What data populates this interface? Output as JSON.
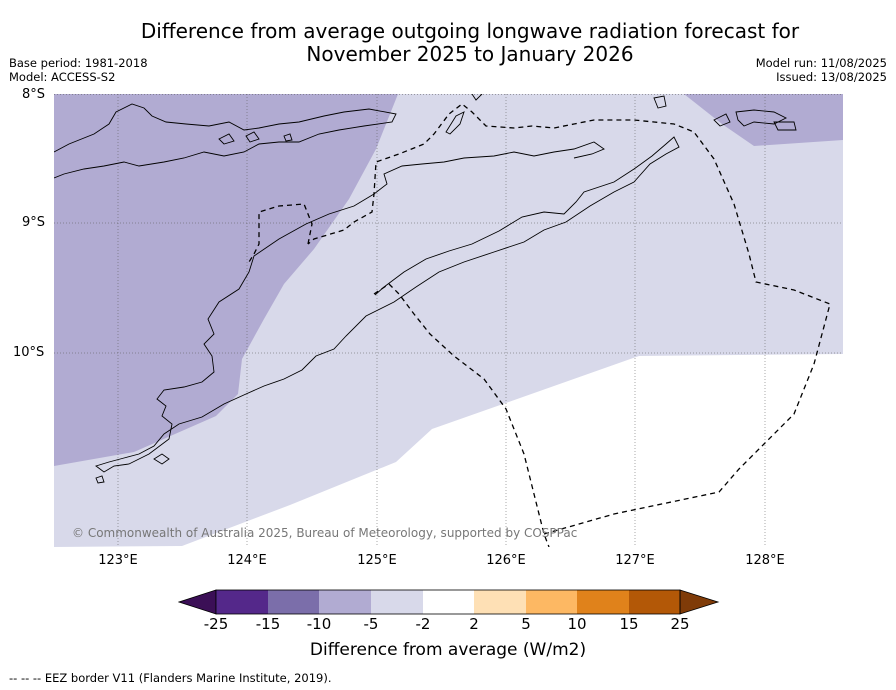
{
  "title_line1": "Difference from average outgoing longwave radiation forecast for",
  "title_line2": "November 2025 to January 2026",
  "base_period": "Base period: 1981-2018",
  "model": "Model: ACCESS-S2",
  "model_run": "Model run: 11/08/2025",
  "issued": "Issued: 13/08/2025",
  "lat_labels": [
    "8°S",
    "9°S",
    "10°S"
  ],
  "lon_labels": [
    "123°E",
    "124°E",
    "125°E",
    "126°E",
    "127°E",
    "128°E"
  ],
  "copyright": "© Commonwealth of Australia 2025, Bureau of Meteorology, supported by COSPPac",
  "colorbar": {
    "ticks": [
      "-25",
      "-15",
      "-10",
      "-5",
      "-2",
      "2",
      "5",
      "10",
      "15",
      "25"
    ],
    "colors": [
      "#3b0f56",
      "#54288a",
      "#7b6eaa",
      "#b1abd2",
      "#d8d9ea",
      "#ffffff",
      "#fee0b5",
      "#fdb863",
      "#e0821b",
      "#b35807",
      "#7f3b08"
    ],
    "label": "Difference from average (W/m2)"
  },
  "eez_note": "--  --  -- EEZ border V11 (Flanders Marine Institute, 2019).",
  "map_colors": {
    "band_-10_-5": "#b1abd2",
    "band_-5_-2": "#d8d9ea",
    "land_outline": "#000000"
  }
}
